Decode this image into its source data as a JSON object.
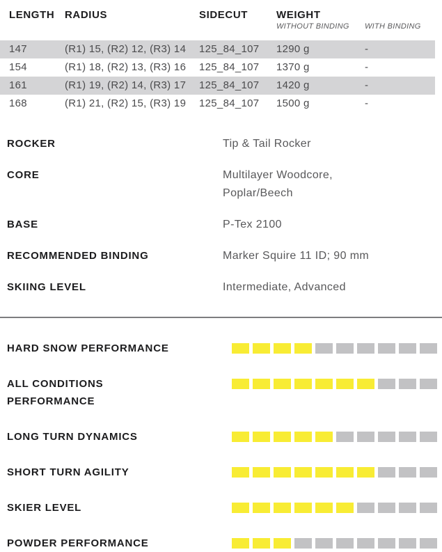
{
  "table": {
    "headers": {
      "length": "LENGTH",
      "radius": "RADIUS",
      "sidecut": "SIDECUT",
      "weight": "WEIGHT"
    },
    "weight_subheaders": {
      "without": "WITHOUT BINDING",
      "with": "WITH BINDING"
    },
    "rows": [
      {
        "length": "147",
        "radius": "(R1) 15, (R2) 12, (R3) 14",
        "sidecut": "125_84_107",
        "weight_without": "1290 g",
        "weight_with": "-"
      },
      {
        "length": "154",
        "radius": "(R1) 18, (R2) 13, (R3) 16",
        "sidecut": "125_84_107",
        "weight_without": "1370 g",
        "weight_with": "-"
      },
      {
        "length": "161",
        "radius": "(R1) 19, (R2) 14, (R3) 17",
        "sidecut": "125_84_107",
        "weight_without": "1420 g",
        "weight_with": "-"
      },
      {
        "length": "168",
        "radius": "(R1) 21, (R2) 15, (R3) 19",
        "sidecut": "125_84_107",
        "weight_without": "1500 g",
        "weight_with": "-"
      }
    ]
  },
  "specs": [
    {
      "label": "ROCKER",
      "value": "Tip & Tail Rocker"
    },
    {
      "label": "CORE",
      "value": "Multilayer Woodcore, Poplar/Beech"
    },
    {
      "label": "BASE",
      "value": "P-Tex 2100"
    },
    {
      "label": "RECOMMENDED BINDING",
      "value": "Marker Squire 11 ID; 90 mm"
    },
    {
      "label": "SKIING LEVEL",
      "value": "Intermediate, Advanced"
    }
  ],
  "ratings": {
    "max": 10,
    "items": [
      {
        "label": "HARD SNOW PERFORMANCE",
        "value": 4
      },
      {
        "label": "ALL CONDITIONS PERFORMANCE",
        "value": 7
      },
      {
        "label": "LONG TURN DYNAMICS",
        "value": 5
      },
      {
        "label": "SHORT TURN AGILITY",
        "value": 7
      },
      {
        "label": "SKIER LEVEL",
        "value": 6
      },
      {
        "label": "POWDER PERFORMANCE",
        "value": 3
      }
    ]
  },
  "colors": {
    "rating_filled": "#f8ec34",
    "rating_empty": "#c2c2c4",
    "row_stripe": "#d4d4d6"
  }
}
